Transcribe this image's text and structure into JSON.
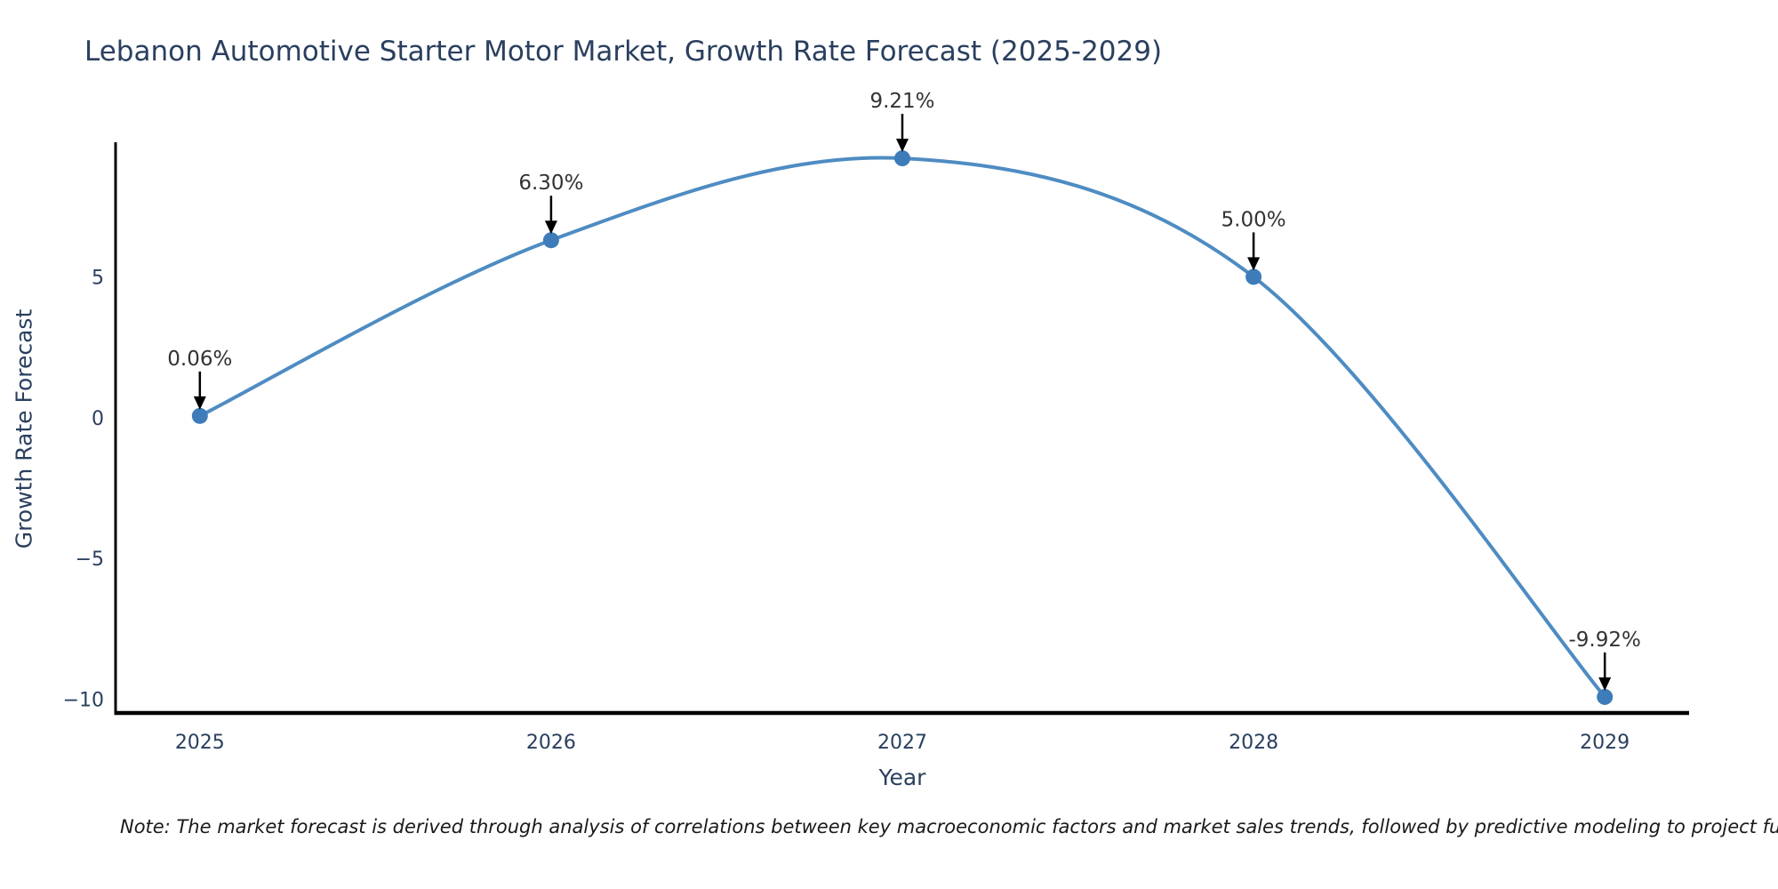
{
  "header": {
    "title": "Lebanon Automotive Starter Motor Market, Growth Rate Forecast (2025-2029)"
  },
  "footnote": "Note: The market forecast is derived through analysis of correlations between key macroeconomic factors and market sales trends, followed by predictive modeling to project future sales",
  "chart_data": {
    "type": "line",
    "line_shape": "spline",
    "title": "Lebanon Automotive Starter Motor Market, Growth Rate Forecast (2025-2029)",
    "xlabel": "Year",
    "ylabel": "Growth Rate Forecast",
    "x": [
      2025,
      2026,
      2027,
      2028,
      2029
    ],
    "values": [
      0.06,
      6.3,
      9.21,
      5.0,
      -9.92
    ],
    "point_labels": [
      "0.06%",
      "6.30%",
      "9.21%",
      "5.00%",
      "-9.92%"
    ],
    "x_ticks": [
      {
        "value": 2025,
        "label": "2025"
      },
      {
        "value": 2026,
        "label": "2026"
      },
      {
        "value": 2027,
        "label": "2027"
      },
      {
        "value": 2028,
        "label": "2028"
      },
      {
        "value": 2029,
        "label": "2029"
      }
    ],
    "y_ticks": [
      {
        "value": 5,
        "label": "5"
      },
      {
        "value": 0,
        "label": "0"
      },
      {
        "value": -5,
        "label": "−5"
      },
      {
        "value": -10,
        "label": "−10"
      }
    ],
    "x_range": [
      2024.76,
      2029.24
    ],
    "y_range": [
      -10.49,
      9.78
    ],
    "grid": false,
    "legend": "none",
    "colors": {
      "line": "#4e8cc2",
      "marker": "#3d7cb8",
      "axis": "#000000",
      "tick_text": "#2a3f5f",
      "annotation_text": "#333333",
      "arrow": "#000000",
      "title_text": "#2a3f5f"
    }
  }
}
